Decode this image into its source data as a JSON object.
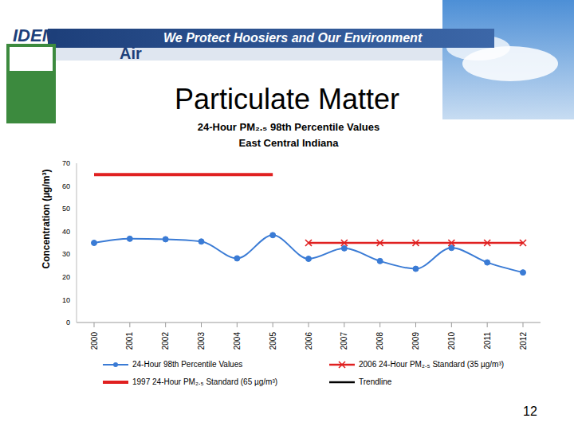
{
  "header": {
    "logo": "IDEM",
    "slogan": "We Protect Hoosiers and Our Environment",
    "section": "Air"
  },
  "page_number": "12",
  "chart_data": {
    "type": "line",
    "title": "Particulate Matter",
    "subtitle": [
      "24-Hour PM₂.₅ 98th Percentile Values",
      "East Central Indiana"
    ],
    "y_label": "Concentration (µg/m³)",
    "categories": [
      "2000",
      "2001",
      "2002",
      "2003",
      "2004",
      "2005",
      "2006",
      "2007",
      "2008",
      "2009",
      "2010",
      "2011",
      "2012"
    ],
    "series": [
      {
        "name": "24-Hour 98th Percentile Values",
        "color": "#3a7bd5",
        "marker": "circle",
        "values": [
          35,
          36.8,
          36.6,
          35.6,
          28.2,
          38.4,
          28,
          32.6,
          27,
          23.6,
          32.8,
          26.4,
          22
        ]
      },
      {
        "name": "2006 24-Hour PM₂.₅ Standard (35 µg/m³)",
        "color": "#e02020",
        "marker": "x",
        "values": [
          null,
          null,
          null,
          null,
          null,
          null,
          35,
          35,
          35,
          35,
          35,
          35,
          35
        ]
      },
      {
        "name": "1997 24-Hour PM₂.₅ Standard (65 µg/m³)",
        "color": "#e02020",
        "marker": "none",
        "values": [
          65,
          65,
          65,
          65,
          65,
          65,
          null,
          null,
          null,
          null,
          null,
          null,
          null
        ]
      },
      {
        "name": "Trendline",
        "color": "#000000",
        "marker": "none",
        "values": [
          null,
          null,
          null,
          null,
          null,
          null,
          null,
          null,
          null,
          null,
          null,
          null,
          null
        ]
      }
    ],
    "ylim": [
      0,
      70
    ],
    "yticks": [
      0,
      10,
      20,
      30,
      40,
      50,
      60,
      70
    ],
    "grid": false,
    "legend": "bottom"
  }
}
